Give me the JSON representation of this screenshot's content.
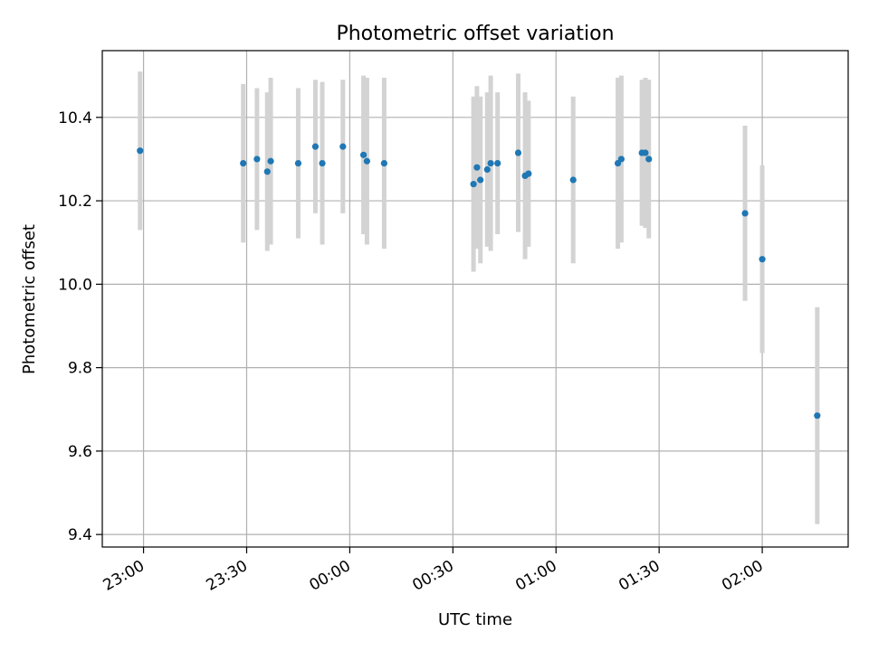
{
  "chart_data": {
    "type": "scatter",
    "title": "Photometric offset variation",
    "xlabel": "UTC time",
    "ylabel": "Photometric offset",
    "x_axis_type": "time",
    "xlim": [
      "22:48",
      "02:25"
    ],
    "ylim": [
      9.37,
      10.56
    ],
    "x_ticks": [
      "23:00",
      "23:30",
      "00:00",
      "00:30",
      "01:00",
      "01:30",
      "02:00"
    ],
    "y_ticks": [
      9.4,
      9.6,
      9.8,
      10.0,
      10.2,
      10.4
    ],
    "grid": true,
    "marker_color": "#1f77b4",
    "errorbar_color": "#d3d3d3",
    "points": [
      {
        "t": "22:59",
        "y": 10.32,
        "err": 0.19
      },
      {
        "t": "23:29",
        "y": 10.29,
        "err": 0.19
      },
      {
        "t": "23:33",
        "y": 10.3,
        "err": 0.17
      },
      {
        "t": "23:36",
        "y": 10.27,
        "err": 0.19
      },
      {
        "t": "23:37",
        "y": 10.295,
        "err": 0.2
      },
      {
        "t": "23:45",
        "y": 10.29,
        "err": 0.18
      },
      {
        "t": "23:50",
        "y": 10.33,
        "err": 0.16
      },
      {
        "t": "23:52",
        "y": 10.29,
        "err": 0.195
      },
      {
        "t": "23:58",
        "y": 10.33,
        "err": 0.16
      },
      {
        "t": "00:04",
        "y": 10.31,
        "err": 0.19
      },
      {
        "t": "00:05",
        "y": 10.295,
        "err": 0.2
      },
      {
        "t": "00:10",
        "y": 10.29,
        "err": 0.205
      },
      {
        "t": "00:36",
        "y": 10.24,
        "err": 0.21
      },
      {
        "t": "00:37",
        "y": 10.28,
        "err": 0.195
      },
      {
        "t": "00:38",
        "y": 10.25,
        "err": 0.2
      },
      {
        "t": "00:40",
        "y": 10.275,
        "err": 0.185
      },
      {
        "t": "00:41",
        "y": 10.29,
        "err": 0.21
      },
      {
        "t": "00:43",
        "y": 10.29,
        "err": 0.17
      },
      {
        "t": "00:49",
        "y": 10.315,
        "err": 0.19
      },
      {
        "t": "00:51",
        "y": 10.26,
        "err": 0.2
      },
      {
        "t": "00:52",
        "y": 10.265,
        "err": 0.175
      },
      {
        "t": "01:05",
        "y": 10.25,
        "err": 0.2
      },
      {
        "t": "01:18",
        "y": 10.29,
        "err": 0.205
      },
      {
        "t": "01:19",
        "y": 10.3,
        "err": 0.2
      },
      {
        "t": "01:25",
        "y": 10.315,
        "err": 0.175
      },
      {
        "t": "01:26",
        "y": 10.315,
        "err": 0.18
      },
      {
        "t": "01:27",
        "y": 10.3,
        "err": 0.19
      },
      {
        "t": "01:55",
        "y": 10.17,
        "err": 0.21
      },
      {
        "t": "02:00",
        "y": 10.06,
        "err": 0.225
      },
      {
        "t": "02:16",
        "y": 9.685,
        "err": 0.26
      }
    ]
  }
}
